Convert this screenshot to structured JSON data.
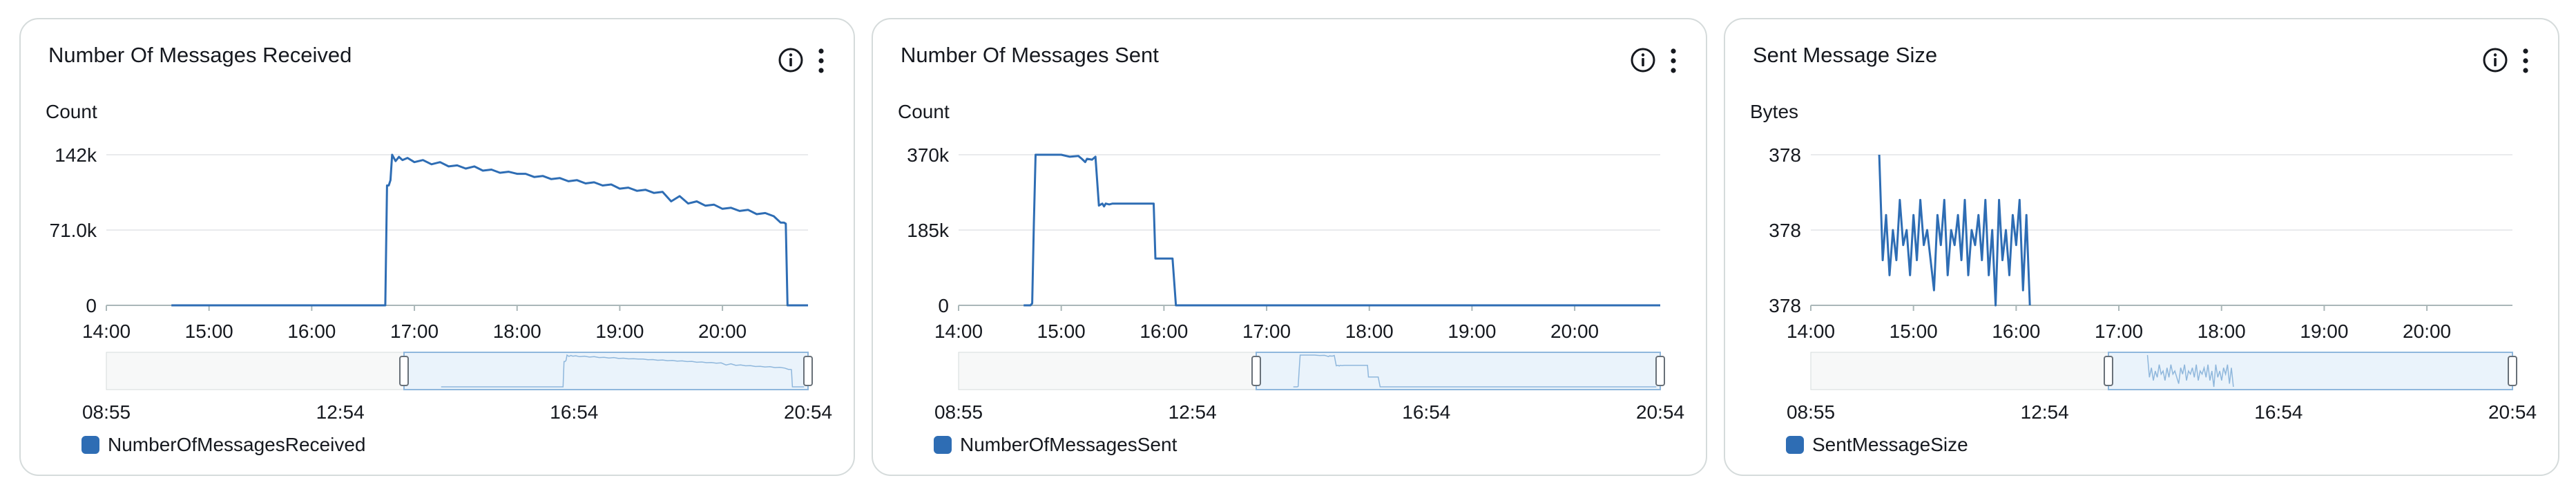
{
  "colors": {
    "series": "#2e6db4",
    "grid": "#e9ebed",
    "axis": "#aab7b8",
    "nav_fill": "#eaf3fb",
    "nav_border": "#8fb7dc"
  },
  "icons": {
    "info": "info-circle-icon",
    "more": "vertical-ellipsis-icon"
  },
  "panels": [
    {
      "title": "Number Of Messages Received",
      "unit": "Count",
      "legend": "NumberOfMessagesReceived"
    },
    {
      "title": "Number Of Messages Sent",
      "unit": "Count",
      "legend": "NumberOfMessagesSent"
    },
    {
      "title": "Sent Message Size",
      "unit": "Bytes",
      "legend": "SentMessageSize"
    }
  ],
  "chart_data": [
    {
      "type": "line",
      "title": "Number Of Messages Received",
      "ylabel": "Count",
      "xlim": [
        "14:00",
        "20:50"
      ],
      "ylim": [
        0,
        142000
      ],
      "y_ticks": [
        "0",
        "71.0k",
        "142k"
      ],
      "x_ticks": [
        "14:00",
        "15:00",
        "16:00",
        "17:00",
        "18:00",
        "19:00",
        "20:00"
      ],
      "grid": true,
      "legend_position": "bottom-left",
      "navigator_ticks": [
        "08:55",
        "12:54",
        "16:54",
        "20:54"
      ],
      "series": [
        {
          "name": "NumberOfMessagesReceived",
          "x": [
            "14:38",
            "15:00",
            "15:30",
            "16:00",
            "16:30",
            "16:43",
            "16:44",
            "16:45",
            "16:46",
            "16:47",
            "16:49",
            "16:51",
            "16:53",
            "16:56",
            "17:00",
            "17:05",
            "17:10",
            "17:15",
            "17:20",
            "17:25",
            "17:30",
            "17:35",
            "17:40",
            "17:45",
            "17:50",
            "17:55",
            "18:00",
            "18:05",
            "18:10",
            "18:15",
            "18:20",
            "18:25",
            "18:30",
            "18:35",
            "18:40",
            "18:45",
            "18:50",
            "18:55",
            "19:00",
            "19:05",
            "19:10",
            "19:15",
            "19:20",
            "19:25",
            "19:30",
            "19:35",
            "19:40",
            "19:45",
            "19:50",
            "19:55",
            "20:00",
            "20:05",
            "20:10",
            "20:15",
            "20:20",
            "20:25",
            "20:30",
            "20:34",
            "20:36",
            "20:37",
            "20:38",
            "20:50"
          ],
          "y": [
            0,
            0,
            0,
            0,
            0,
            0,
            113000,
            113000,
            118000,
            142000,
            136000,
            140000,
            137000,
            139000,
            135000,
            137000,
            133000,
            135000,
            131000,
            132000,
            129000,
            131000,
            127000,
            128000,
            125000,
            126000,
            124000,
            124000,
            121000,
            122000,
            119000,
            120000,
            117000,
            118000,
            115000,
            116000,
            113000,
            114000,
            110000,
            111000,
            108000,
            109000,
            106000,
            107000,
            98000,
            103000,
            96000,
            98000,
            94000,
            95000,
            91000,
            92000,
            89000,
            90000,
            86000,
            87000,
            84000,
            78000,
            78000,
            77000,
            0,
            0
          ]
        }
      ]
    },
    {
      "type": "line",
      "title": "Number Of Messages Sent",
      "ylabel": "Count",
      "xlim": [
        "14:00",
        "20:50"
      ],
      "ylim": [
        0,
        370000
      ],
      "y_ticks": [
        "0",
        "185k",
        "370k"
      ],
      "x_ticks": [
        "14:00",
        "15:00",
        "16:00",
        "17:00",
        "18:00",
        "19:00",
        "20:00"
      ],
      "grid": true,
      "legend_position": "bottom-left",
      "navigator_ticks": [
        "08:55",
        "12:54",
        "16:54",
        "20:54"
      ],
      "series": [
        {
          "name": "NumberOfMessagesSent",
          "x": [
            "14:38",
            "14:40",
            "14:42",
            "14:43",
            "14:44",
            "14:45",
            "14:50",
            "15:00",
            "15:05",
            "15:10",
            "15:12",
            "15:14",
            "15:15",
            "15:18",
            "15:20",
            "15:22",
            "15:24",
            "15:25",
            "15:26",
            "15:28",
            "15:30",
            "15:35",
            "15:40",
            "15:45",
            "15:50",
            "15:54",
            "15:55",
            "15:56",
            "16:05",
            "16:07",
            "16:10",
            "16:20",
            "17:00",
            "18:00",
            "19:00",
            "20:00",
            "20:50"
          ],
          "y": [
            0,
            0,
            0,
            5000,
            200000,
            370000,
            370000,
            370000,
            365000,
            367000,
            360000,
            352000,
            360000,
            358000,
            365000,
            245000,
            250000,
            243000,
            250000,
            248000,
            250000,
            250000,
            250000,
            250000,
            250000,
            250000,
            115000,
            115000,
            115000,
            0,
            0,
            0,
            0,
            0,
            0,
            0,
            0
          ]
        }
      ]
    },
    {
      "type": "line",
      "title": "Sent Message Size",
      "ylabel": "Bytes",
      "xlim": [
        "14:00",
        "20:50"
      ],
      "ylim": [
        377.5,
        378.5
      ],
      "y_ticks": [
        "378",
        "378",
        "378"
      ],
      "x_ticks": [
        "14:00",
        "15:00",
        "16:00",
        "17:00",
        "18:00",
        "19:00",
        "20:00"
      ],
      "grid": true,
      "legend_position": "bottom-left",
      "navigator_ticks": [
        "08:55",
        "12:54",
        "16:54",
        "20:54"
      ],
      "series": [
        {
          "name": "SentMessageSize",
          "x": [
            "14:40",
            "14:42",
            "14:44",
            "14:46",
            "14:48",
            "14:50",
            "14:52",
            "14:54",
            "14:56",
            "14:58",
            "15:00",
            "15:02",
            "15:04",
            "15:06",
            "15:08",
            "15:10",
            "15:12",
            "15:14",
            "15:16",
            "15:18",
            "15:20",
            "15:22",
            "15:24",
            "15:26",
            "15:28",
            "15:30",
            "15:32",
            "15:34",
            "15:36",
            "15:38",
            "15:40",
            "15:42",
            "15:44",
            "15:46",
            "15:48",
            "15:50",
            "15:52",
            "15:54",
            "15:56",
            "15:58",
            "16:00",
            "16:02",
            "16:04",
            "16:06",
            "16:08"
          ],
          "y": [
            378.5,
            377.8,
            378.1,
            377.7,
            378.0,
            377.8,
            378.2,
            377.9,
            378.0,
            377.7,
            378.1,
            377.8,
            378.2,
            377.9,
            378.0,
            377.8,
            377.6,
            378.1,
            377.9,
            378.2,
            377.7,
            378.0,
            377.9,
            378.1,
            377.8,
            378.2,
            377.7,
            378.0,
            377.9,
            378.1,
            377.8,
            378.2,
            377.7,
            378.0,
            377.5,
            378.2,
            377.8,
            378.0,
            377.7,
            378.1,
            377.9,
            378.2,
            377.6,
            378.1,
            377.5
          ]
        }
      ]
    }
  ]
}
